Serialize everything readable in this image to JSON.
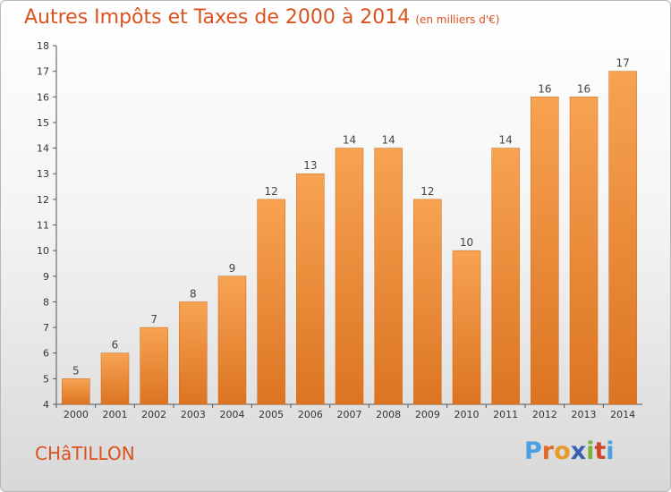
{
  "header": {
    "title": "Autres Impôts et Taxes de 2000 à 2014",
    "subtitle": "(en milliers d'€)"
  },
  "footer": {
    "place": "CHâTILLON",
    "brand": [
      "P",
      "r",
      "o",
      "x",
      "i",
      "t",
      "i"
    ]
  },
  "colors": {
    "bar_top": "#f7a352",
    "bar_bottom": "#dc7422",
    "title": "#d9531e"
  },
  "chart_data": {
    "type": "bar",
    "title": "Autres Impôts et Taxes de 2000 à 2014",
    "subtitle": "(en milliers d'€)",
    "categories": [
      "2000",
      "2001",
      "2002",
      "2003",
      "2004",
      "2005",
      "2006",
      "2007",
      "2008",
      "2009",
      "2010",
      "2011",
      "2012",
      "2013",
      "2014"
    ],
    "values": [
      5,
      6,
      7,
      8,
      9,
      12,
      13,
      14,
      14,
      12,
      10,
      14,
      16,
      16,
      17
    ],
    "ylim": [
      4,
      18
    ],
    "yticks": [
      4,
      5,
      6,
      7,
      8,
      9,
      10,
      11,
      12,
      13,
      14,
      15,
      16,
      17,
      18
    ],
    "grid": false,
    "legend": "none",
    "data_labels": true
  }
}
